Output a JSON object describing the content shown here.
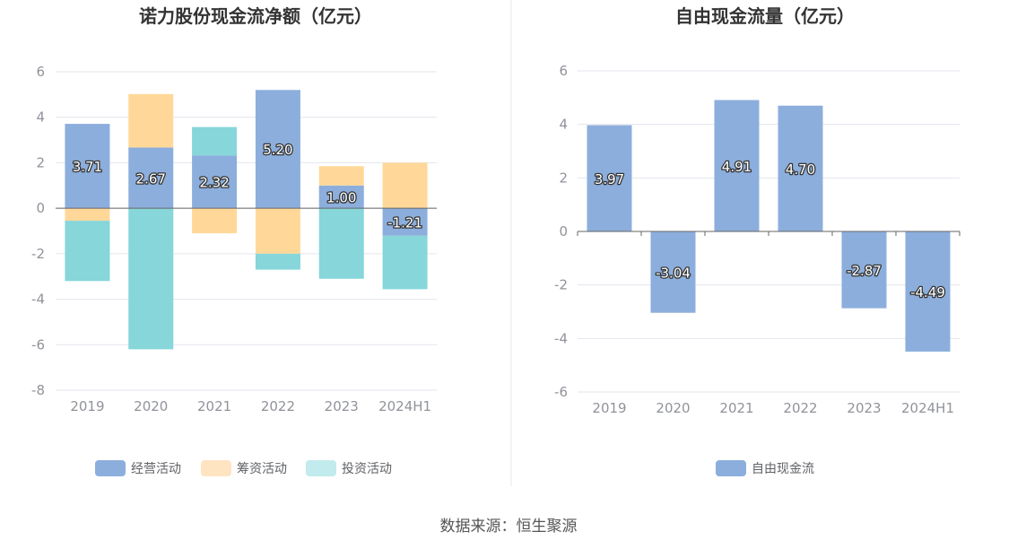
{
  "colors": {
    "operating": "#8CAEDC",
    "financing": "#FFD899",
    "investing": "#86D6DA",
    "investing_legend": "#C2EBED",
    "financing_legend": "#FFE4C2",
    "grid": "#E3E6EE",
    "zero_line": "#666666",
    "divider": "#E8E8E8"
  },
  "chart_data": [
    {
      "type": "bar",
      "stacked": true,
      "title": "诺力股份现金流净额（亿元）",
      "categories": [
        "2019",
        "2020",
        "2021",
        "2022",
        "2023",
        "2024H1"
      ],
      "ylim": [
        -8,
        6
      ],
      "yticks": [
        "6",
        "4",
        "2",
        "0",
        "-2",
        "-4",
        "-6",
        "-8"
      ],
      "series": [
        {
          "name": "经营活动",
          "values": [
            3.71,
            2.67,
            2.32,
            5.2,
            1.0,
            -1.21
          ],
          "labels": [
            "3.71",
            "2.67",
            "2.32",
            "5.20",
            "1.00",
            "-1.21"
          ]
        },
        {
          "name": "筹资活动",
          "values": [
            -0.55,
            2.35,
            -1.1,
            -2.0,
            0.85,
            2.0
          ]
        },
        {
          "name": "投资活动",
          "values": [
            -2.65,
            -6.2,
            1.25,
            -0.7,
            -3.1,
            -2.35
          ]
        }
      ],
      "legend": [
        "经营活动",
        "筹资活动",
        "投资活动"
      ],
      "legend_position": "bottom"
    },
    {
      "type": "bar",
      "title": "自由现金流量（亿元）",
      "categories": [
        "2019",
        "2020",
        "2021",
        "2022",
        "2023",
        "2024H1"
      ],
      "ylim": [
        -6,
        6
      ],
      "yticks": [
        "6",
        "4",
        "2",
        "0",
        "-2",
        "-4",
        "-6"
      ],
      "series": [
        {
          "name": "自由现金流",
          "values": [
            3.97,
            -3.04,
            4.91,
            4.7,
            -2.87,
            -4.49
          ],
          "labels": [
            "3.97",
            "-3.04",
            "4.91",
            "4.70",
            "-2.87",
            "-4.49"
          ]
        }
      ],
      "legend": [
        "自由现金流"
      ],
      "legend_position": "bottom"
    }
  ],
  "footer": {
    "source": "数据来源：恒生聚源"
  }
}
